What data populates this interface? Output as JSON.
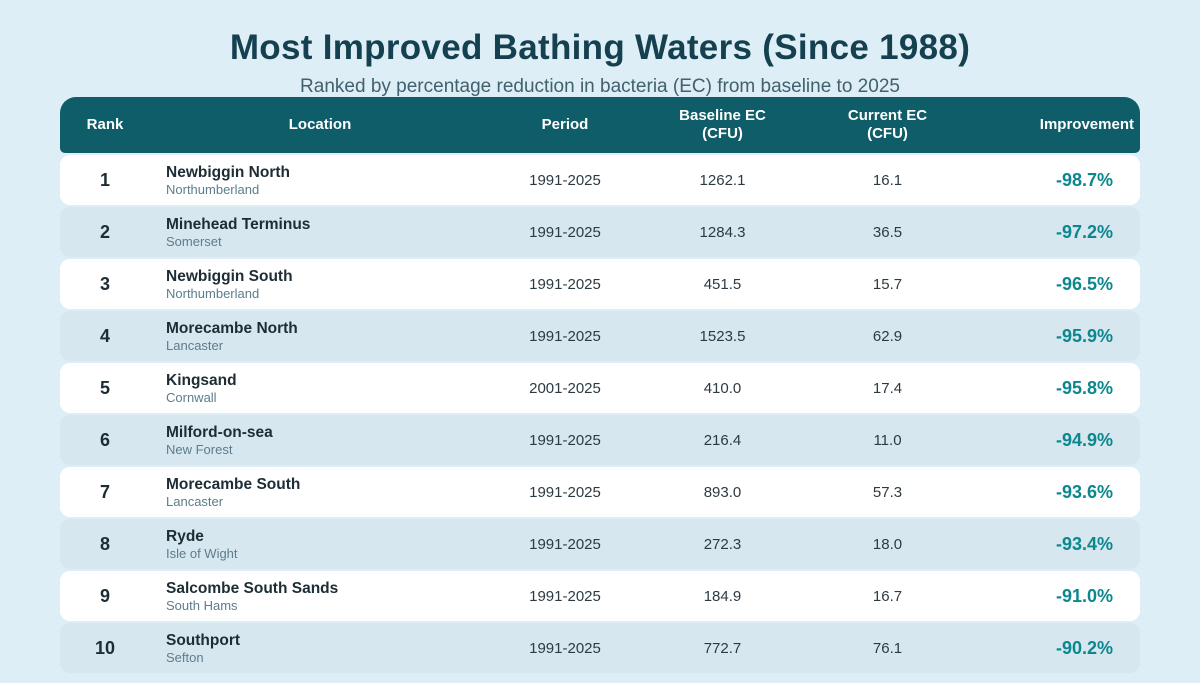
{
  "page": {
    "title": "Most Improved Bathing Waters (Since 1988)",
    "subtitle": "Ranked by percentage reduction in bacteria (EC) from baseline to 2025"
  },
  "colors": {
    "page_background": "#deeef6",
    "header_background": "#0f5d68",
    "row_alternate_blue": "#d7e7ef",
    "row_white": "#ffffff",
    "title_text": "#15404f",
    "improvement_text": "#0b878d",
    "district_text": "#5b7d8d"
  },
  "table": {
    "columns": [
      {
        "label": "Rank",
        "label2": ""
      },
      {
        "label": "Location",
        "label2": ""
      },
      {
        "label": "Period",
        "label2": ""
      },
      {
        "label": "Baseline EC",
        "label2": "(CFU)"
      },
      {
        "label": "Current EC",
        "label2": "(CFU)"
      },
      {
        "label": "Improvement",
        "label2": ""
      }
    ],
    "rows": [
      {
        "rank": "1",
        "name": "Newbiggin North",
        "district": "Northumberland",
        "period": "1991-2025",
        "baseline": "1262.1",
        "current": "16.1",
        "improvement": "-98.7%"
      },
      {
        "rank": "2",
        "name": "Minehead Terminus",
        "district": "Somerset",
        "period": "1991-2025",
        "baseline": "1284.3",
        "current": "36.5",
        "improvement": "-97.2%"
      },
      {
        "rank": "3",
        "name": "Newbiggin South",
        "district": "Northumberland",
        "period": "1991-2025",
        "baseline": "451.5",
        "current": "15.7",
        "improvement": "-96.5%"
      },
      {
        "rank": "4",
        "name": "Morecambe North",
        "district": "Lancaster",
        "period": "1991-2025",
        "baseline": "1523.5",
        "current": "62.9",
        "improvement": "-95.9%"
      },
      {
        "rank": "5",
        "name": "Kingsand",
        "district": "Cornwall",
        "period": "2001-2025",
        "baseline": "410.0",
        "current": "17.4",
        "improvement": "-95.8%"
      },
      {
        "rank": "6",
        "name": "Milford-on-sea",
        "district": "New Forest",
        "period": "1991-2025",
        "baseline": "216.4",
        "current": "11.0",
        "improvement": "-94.9%"
      },
      {
        "rank": "7",
        "name": "Morecambe South",
        "district": "Lancaster",
        "period": "1991-2025",
        "baseline": "893.0",
        "current": "57.3",
        "improvement": "-93.6%"
      },
      {
        "rank": "8",
        "name": "Ryde",
        "district": "Isle of Wight",
        "period": "1991-2025",
        "baseline": "272.3",
        "current": "18.0",
        "improvement": "-93.4%"
      },
      {
        "rank": "9",
        "name": "Salcombe South Sands",
        "district": "South Hams",
        "period": "1991-2025",
        "baseline": "184.9",
        "current": "16.7",
        "improvement": "-91.0%"
      },
      {
        "rank": "10",
        "name": "Southport",
        "district": "Sefton",
        "period": "1991-2025",
        "baseline": "772.7",
        "current": "76.1",
        "improvement": "-90.2%"
      }
    ]
  }
}
